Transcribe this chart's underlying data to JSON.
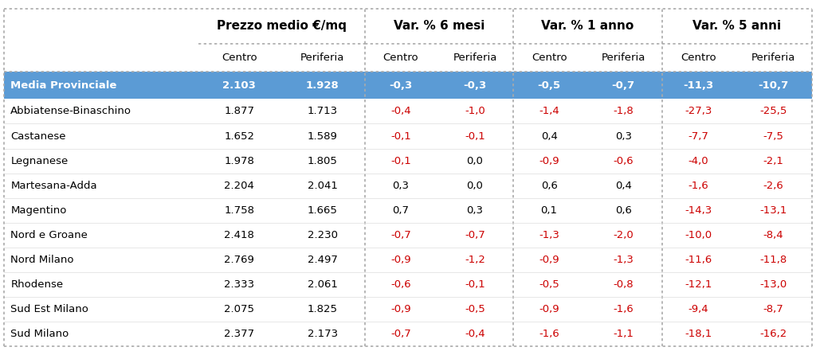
{
  "col_groups": [
    "Prezzo medio €/mq",
    "Var. % 6 mesi",
    "Var. % 1 anno",
    "Var. % 5 anni"
  ],
  "rows": [
    {
      "label": "Media Provinciale",
      "values": [
        "2.103",
        "1.928",
        "-0,3",
        "-0,3",
        "-0,5",
        "-0,7",
        "-11,3",
        "-10,7"
      ],
      "header": true
    },
    {
      "label": "Abbiatense-Binaschino",
      "values": [
        "1.877",
        "1.713",
        "-0,4",
        "-1,0",
        "-1,4",
        "-1,8",
        "-27,3",
        "-25,5"
      ],
      "header": false
    },
    {
      "label": "Castanese",
      "values": [
        "1.652",
        "1.589",
        "-0,1",
        "-0,1",
        "0,4",
        "0,3",
        "-7,7",
        "-7,5"
      ],
      "header": false
    },
    {
      "label": "Legnanese",
      "values": [
        "1.978",
        "1.805",
        "-0,1",
        "0,0",
        "-0,9",
        "-0,6",
        "-4,0",
        "-2,1"
      ],
      "header": false
    },
    {
      "label": "Martesana-Adda",
      "values": [
        "2.204",
        "2.041",
        "0,3",
        "0,0",
        "0,6",
        "0,4",
        "-1,6",
        "-2,6"
      ],
      "header": false
    },
    {
      "label": "Magentino",
      "values": [
        "1.758",
        "1.665",
        "0,7",
        "0,3",
        "0,1",
        "0,6",
        "-14,3",
        "-13,1"
      ],
      "header": false
    },
    {
      "label": "Nord e Groane",
      "values": [
        "2.418",
        "2.230",
        "-0,7",
        "-0,7",
        "-1,3",
        "-2,0",
        "-10,0",
        "-8,4"
      ],
      "header": false
    },
    {
      "label": "Nord Milano",
      "values": [
        "2.769",
        "2.497",
        "-0,9",
        "-1,2",
        "-0,9",
        "-1,3",
        "-11,6",
        "-11,8"
      ],
      "header": false
    },
    {
      "label": "Rhodense",
      "values": [
        "2.333",
        "2.061",
        "-0,6",
        "-0,1",
        "-0,5",
        "-0,8",
        "-12,1",
        "-13,0"
      ],
      "header": false
    },
    {
      "label": "Sud Est Milano",
      "values": [
        "2.075",
        "1.825",
        "-0,9",
        "-0,5",
        "-0,9",
        "-1,6",
        "-9,4",
        "-8,7"
      ],
      "header": false
    },
    {
      "label": "Sud Milano",
      "values": [
        "2.377",
        "2.173",
        "-0,7",
        "-0,4",
        "-1,6",
        "-1,1",
        "-18,1",
        "-16,2"
      ],
      "header": false
    }
  ],
  "header_bg": "#5b9bd5",
  "header_text": "#ffffff",
  "negative_color": "#cc0000",
  "positive_color": "#000000",
  "label_color": "#000000",
  "dash_color": "#aaaaaa",
  "fig_bg": "#ffffff",
  "col_widths_rel": [
    2.4,
    1.0,
    1.05,
    0.88,
    0.95,
    0.88,
    0.95,
    0.9,
    0.95
  ],
  "group_header_fontsize": 11,
  "sub_header_fontsize": 9.5,
  "data_fontsize": 9.5,
  "label_fontsize": 9.5
}
